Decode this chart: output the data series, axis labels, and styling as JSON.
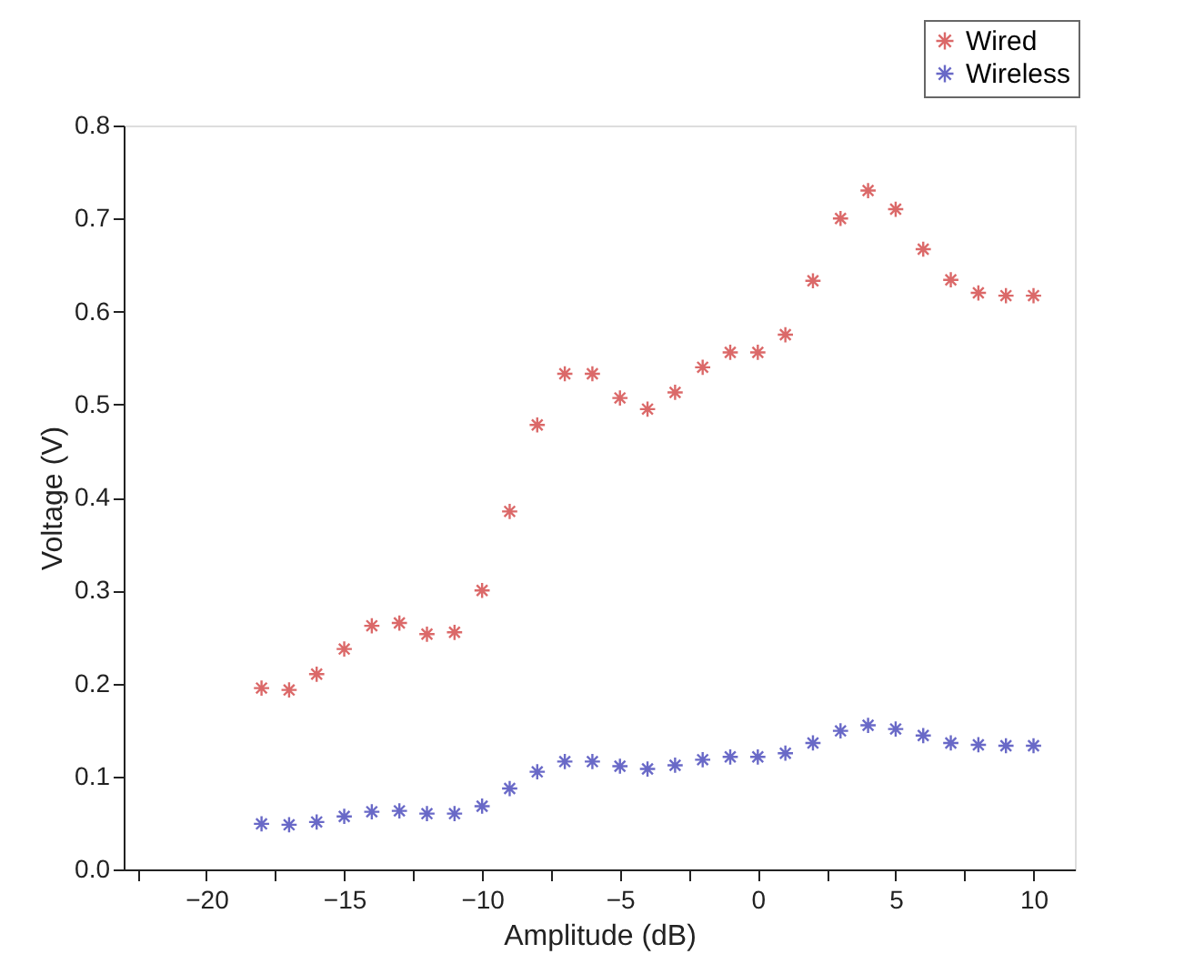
{
  "chart_data": {
    "type": "scatter",
    "xlabel": "Amplitude (dB)",
    "ylabel": "Voltage (V)",
    "x": [
      -18,
      -17,
      -16,
      -15,
      -14,
      -13,
      -12,
      -11,
      -10,
      -9,
      -8,
      -7,
      -6,
      -5,
      -4,
      -3,
      -2,
      -1,
      0,
      1,
      2,
      3,
      4,
      5,
      6,
      7,
      8,
      9,
      10
    ],
    "series": [
      {
        "name": "Wired",
        "color": "#cc2a2a",
        "values": [
          0.195,
          0.193,
          0.21,
          0.237,
          0.262,
          0.265,
          0.253,
          0.255,
          0.3,
          0.385,
          0.478,
          0.533,
          0.533,
          0.507,
          0.495,
          0.513,
          0.54,
          0.556,
          0.556,
          0.575,
          0.633,
          0.7,
          0.73,
          0.71,
          0.667,
          0.634,
          0.62,
          0.617,
          0.617
        ]
      },
      {
        "name": "Wireless",
        "color": "#2a2ab0",
        "values": [
          0.049,
          0.048,
          0.051,
          0.057,
          0.062,
          0.063,
          0.06,
          0.06,
          0.068,
          0.087,
          0.105,
          0.116,
          0.116,
          0.111,
          0.108,
          0.112,
          0.118,
          0.121,
          0.121,
          0.125,
          0.136,
          0.149,
          0.155,
          0.151,
          0.144,
          0.136,
          0.134,
          0.133,
          0.133
        ]
      }
    ],
    "xlim": [
      -23,
      11.5
    ],
    "xticks": [
      {
        "value": -22.5,
        "label": null
      },
      -20,
      {
        "value": -17.5,
        "label": null
      },
      -15,
      {
        "value": -12.5,
        "label": null
      },
      -10,
      {
        "value": -7.5,
        "label": null
      },
      -5,
      {
        "value": -2.5,
        "label": null
      },
      0,
      {
        "value": 2.5,
        "label": null
      },
      5,
      {
        "value": 7.5,
        "label": null
      },
      10
    ],
    "ylim": [
      0,
      0.8
    ],
    "yticks": [
      "0.0",
      0.1,
      0.2,
      0.3,
      0.4,
      0.5,
      0.6,
      0.7,
      0.8
    ],
    "marker": "cross",
    "legend": "top right",
    "grid": false
  }
}
